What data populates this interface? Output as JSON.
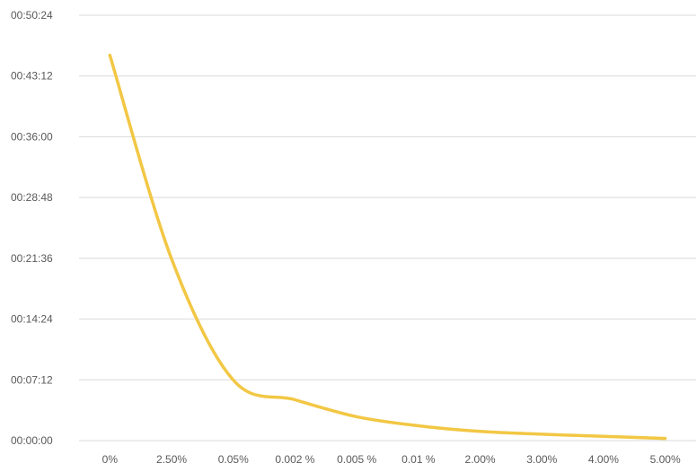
{
  "chart_data": {
    "type": "line",
    "title": "",
    "xlabel": "",
    "ylabel": "",
    "categories": [
      "0%",
      "2.50%",
      "0.05%",
      "0.002 %",
      "0.005 %",
      "0.01 %",
      "2.00%",
      "3.00%",
      "4.00%",
      "5.00%"
    ],
    "y_ticks": [
      "00:00:00",
      "00:07:12",
      "00:14:24",
      "00:21:36",
      "00:28:48",
      "00:36:00",
      "00:43:12",
      "00:50:24"
    ],
    "ylim_seconds": [
      0,
      3024
    ],
    "series": [
      {
        "color": "#F2C744",
        "values_seconds": [
          2740,
          1290,
          430,
          290,
          170,
          105,
          65,
          45,
          30,
          15
        ],
        "smooth": true
      }
    ],
    "grid": true,
    "legend": "none"
  }
}
